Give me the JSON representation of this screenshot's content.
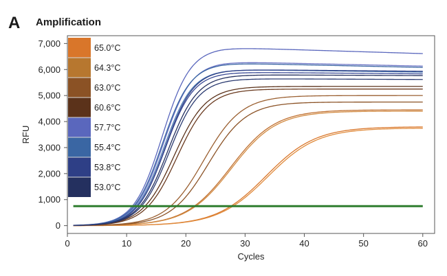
{
  "figure": {
    "panel_letter": "A",
    "title": "Amplification"
  },
  "chart_data": {
    "type": "line",
    "title": "Amplification",
    "xlabel": "Cycles",
    "ylabel": "RFU",
    "xlim": [
      0,
      62
    ],
    "ylim": [
      -300,
      7300
    ],
    "xticks": [
      0,
      10,
      20,
      30,
      40,
      50,
      60
    ],
    "yticks": [
      0,
      1000,
      2000,
      3000,
      4000,
      5000,
      6000,
      7000
    ],
    "ytick_labels": [
      "0",
      "1,000",
      "2,000",
      "3,000",
      "4,000",
      "5,000",
      "6,000",
      "7,000"
    ],
    "grid": false,
    "legend_position": "top-left",
    "legend": [
      {
        "label": "65.0°C",
        "color": "#d9762a"
      },
      {
        "label": "64.3°C",
        "color": "#b7772f"
      },
      {
        "label": "63.0°C",
        "color": "#8b5225"
      },
      {
        "label": "60.6°C",
        "color": "#5b321a"
      },
      {
        "label": "57.7°C",
        "color": "#5a67bd"
      },
      {
        "label": "55.4°C",
        "color": "#3a66a3"
      },
      {
        "label": "53.8°C",
        "color": "#2e3f86"
      },
      {
        "label": "53.0°C",
        "color": "#24305f"
      }
    ],
    "threshold": {
      "value": 750,
      "x_range": [
        1,
        60
      ],
      "color": "#2f7d2f"
    },
    "x_range": [
      1,
      60
    ],
    "series": [
      {
        "color": "#d9762a",
        "params": {
          "plateau": 3800,
          "midpoint": 33.5,
          "slope": 4.2,
          "drift": 0
        }
      },
      {
        "color": "#e08a3a",
        "params": {
          "plateau": 3750,
          "midpoint": 33.8,
          "slope": 4.2,
          "drift": 0
        }
      },
      {
        "color": "#c07030",
        "params": {
          "plateau": 4450,
          "midpoint": 27.5,
          "slope": 3.8,
          "drift": 0
        }
      },
      {
        "color": "#d28a40",
        "params": {
          "plateau": 4400,
          "midpoint": 27.7,
          "slope": 3.8,
          "drift": 0
        }
      },
      {
        "color": "#8b5225",
        "params": {
          "plateau": 4750,
          "midpoint": 23.8,
          "slope": 3.2,
          "drift": 0
        }
      },
      {
        "color": "#9a5f30",
        "params": {
          "plateau": 5000,
          "midpoint": 23.0,
          "slope": 3.2,
          "drift": 0
        }
      },
      {
        "color": "#6a3a1f",
        "params": {
          "plateau": 5250,
          "midpoint": 18.5,
          "slope": 2.7,
          "drift": 0
        }
      },
      {
        "color": "#5b321a",
        "params": {
          "plateau": 5350,
          "midpoint": 18.0,
          "slope": 2.7,
          "drift": 0
        }
      },
      {
        "color": "#5a67bd",
        "params": {
          "plateau": 6850,
          "midpoint": 16.0,
          "slope": 2.4,
          "drift": -7
        }
      },
      {
        "color": "#6b73c4",
        "params": {
          "plateau": 6300,
          "midpoint": 16.2,
          "slope": 2.4,
          "drift": -5
        }
      },
      {
        "color": "#3a66a3",
        "params": {
          "plateau": 6250,
          "midpoint": 16.0,
          "slope": 2.4,
          "drift": -5
        }
      },
      {
        "color": "#4c7ab3",
        "params": {
          "plateau": 6000,
          "midpoint": 16.3,
          "slope": 2.4,
          "drift": -3
        }
      },
      {
        "color": "#2e3f86",
        "params": {
          "plateau": 6000,
          "midpoint": 16.5,
          "slope": 2.4,
          "drift": -2
        }
      },
      {
        "color": "#3a4a95",
        "params": {
          "plateau": 5900,
          "midpoint": 16.5,
          "slope": 2.4,
          "drift": -2
        }
      },
      {
        "color": "#24305f",
        "params": {
          "plateau": 5800,
          "midpoint": 17.0,
          "slope": 2.5,
          "drift": -1
        }
      },
      {
        "color": "#2a3a70",
        "params": {
          "plateau": 5650,
          "midpoint": 17.2,
          "slope": 2.5,
          "drift": -1
        }
      }
    ]
  }
}
